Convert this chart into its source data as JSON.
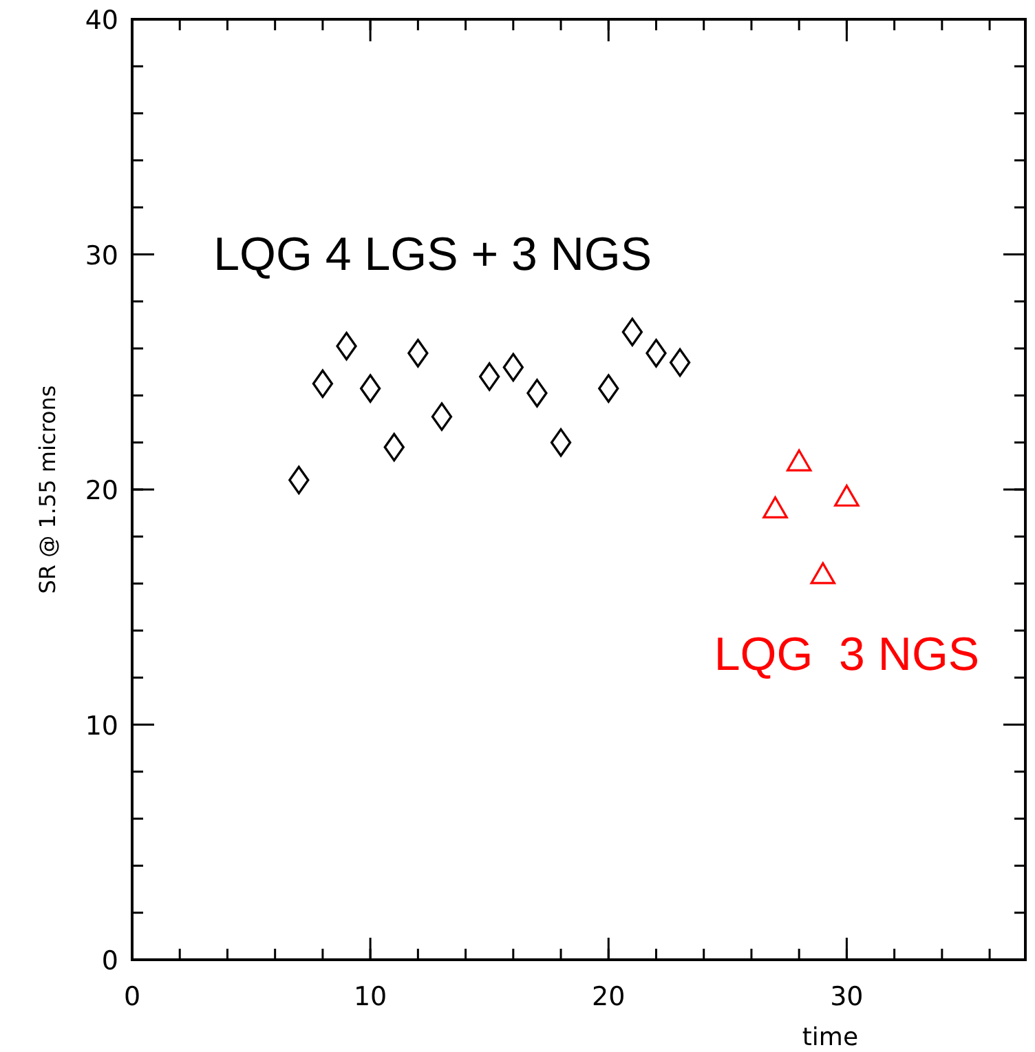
{
  "chart_data": {
    "type": "scatter",
    "xlabel": "time",
    "ylabel": "SR @ 1.55 microns",
    "xlim": [
      0,
      37.5
    ],
    "ylim": [
      0,
      40
    ],
    "xticks": [
      0,
      10,
      20,
      30
    ],
    "yticks": [
      0,
      10,
      20,
      30,
      40
    ],
    "grid": false,
    "series": [
      {
        "name": "LQG 4 LGS + 3 NGS",
        "color": "#000000",
        "marker": "diamond",
        "x": [
          7,
          8,
          9,
          10,
          11,
          12,
          13,
          15,
          16,
          17,
          18,
          20,
          21,
          22,
          23
        ],
        "values": [
          20.4,
          24.5,
          26.1,
          24.3,
          21.8,
          25.8,
          23.1,
          24.8,
          25.2,
          24.1,
          22.0,
          24.3,
          26.7,
          25.8,
          25.4
        ]
      },
      {
        "name": "LQG  3 NGS",
        "color": "#ff0000",
        "marker": "triangle",
        "x": [
          27,
          28,
          29,
          30
        ],
        "values": [
          19.1,
          21.1,
          16.3,
          19.6
        ]
      }
    ]
  }
}
